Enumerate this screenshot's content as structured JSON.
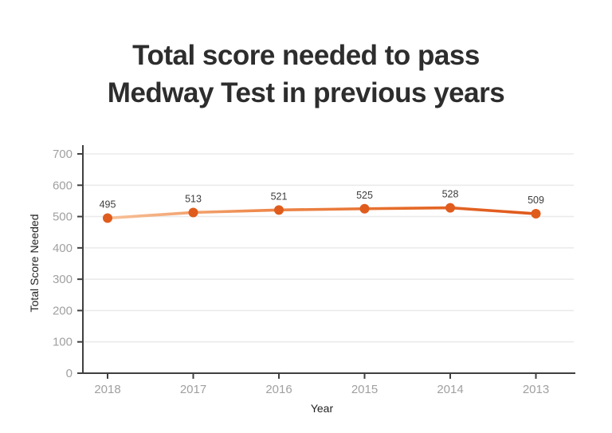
{
  "title": {
    "line1": "Total score needed to pass",
    "line2": "Medway Test in previous years"
  },
  "chart_data": {
    "type": "line",
    "title": "Total score needed to pass Medway Test in previous years",
    "categories": [
      "2018",
      "2017",
      "2016",
      "2015",
      "2014",
      "2013"
    ],
    "series": [
      {
        "name": "Total Score Needed",
        "values": [
          495,
          513,
          521,
          525,
          528,
          509
        ]
      }
    ],
    "data_labels": [
      "495",
      "513",
      "521",
      "525",
      "528",
      "509"
    ],
    "xlabel": "Year",
    "ylabel": "Total Score Needed",
    "ylim": [
      0,
      700
    ],
    "yticks": [
      0,
      100,
      200,
      300,
      400,
      500,
      600,
      700
    ],
    "grid": true,
    "legend": false,
    "colors": {
      "line_gradient_start": "#f7c29a",
      "line_gradient_mid": "#ee8a4e",
      "line_gradient_end": "#e2611f",
      "marker": "#e05c1d",
      "axis": "#404040",
      "gridline": "#ebebeb",
      "tick_label": "#a0a0a0",
      "data_label": "#3d3d3d",
      "axis_title": "#222222",
      "title_text": "#2d2d2d"
    }
  }
}
